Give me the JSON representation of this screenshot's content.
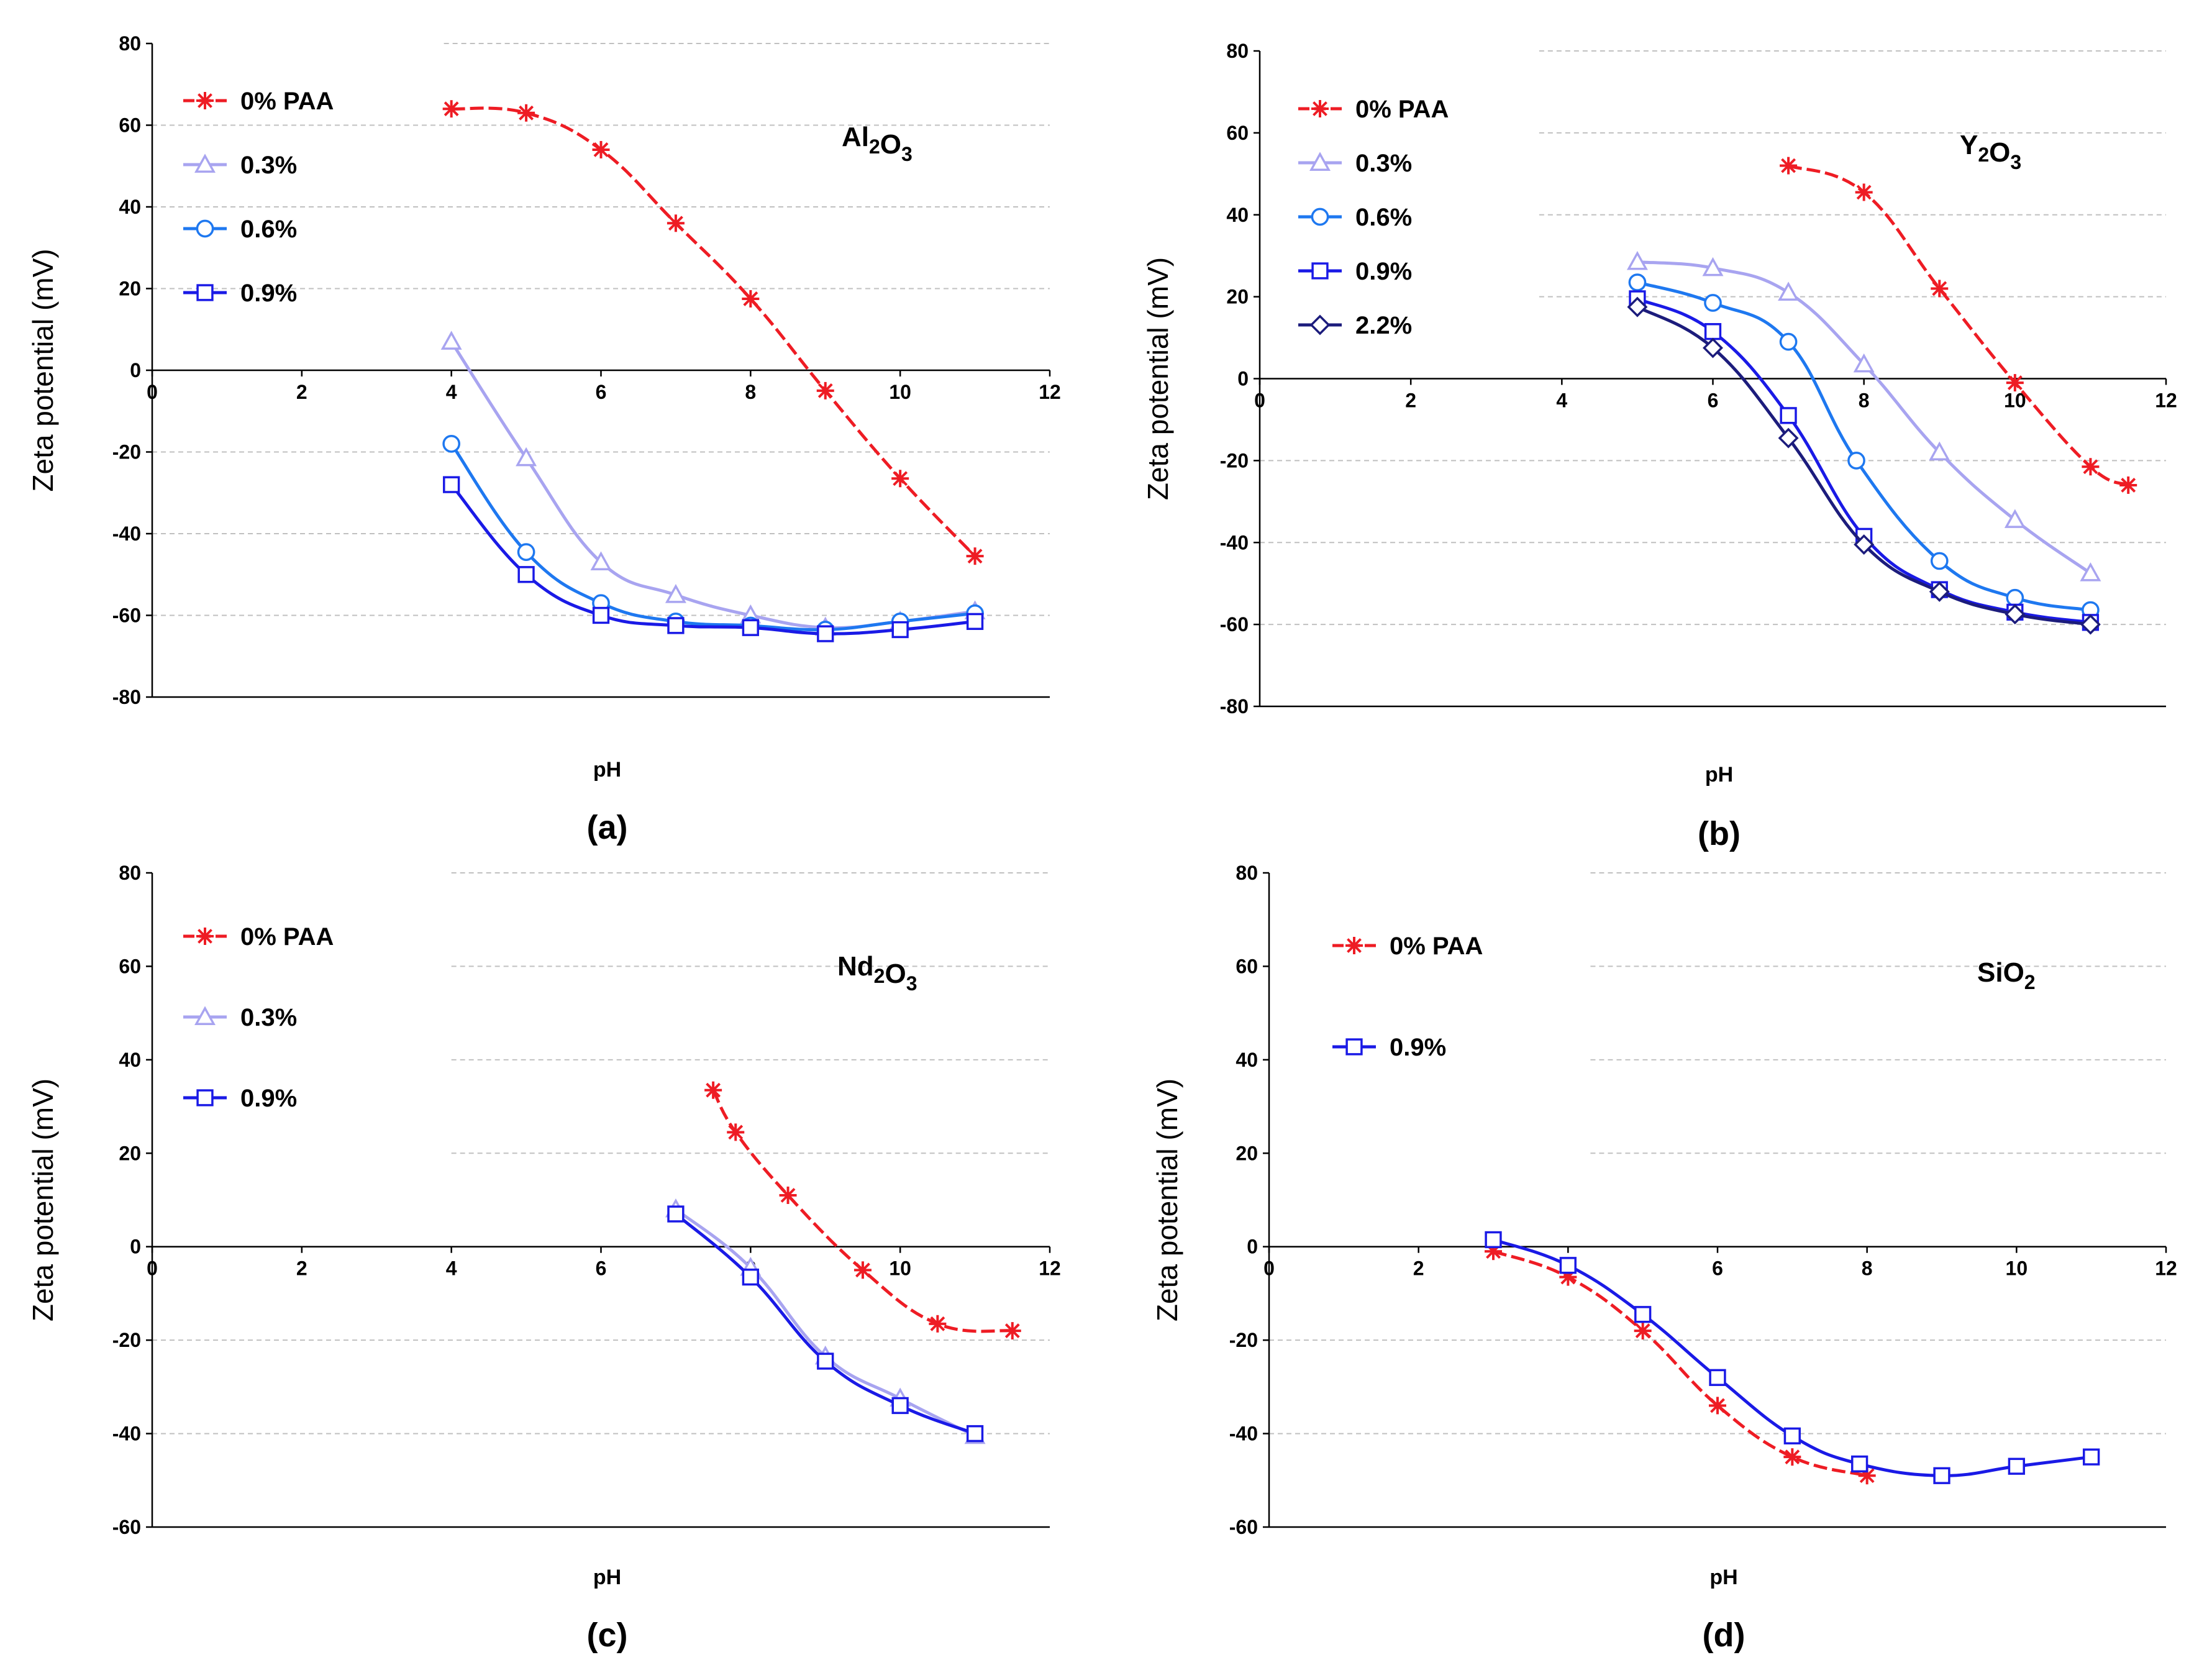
{
  "figure": {
    "colors": {
      "0% PAA": "#ee1c24",
      "0.3%": "#a8a4f0",
      "0.6%": "#1e78f0",
      "0.9%": "#1a1ae6",
      "2.2%": "#1c1c7c"
    }
  },
  "chart_data": [
    {
      "type": "line",
      "panel": "(a)",
      "compound": {
        "base": "Al",
        "parts": [
          [
            "Al",
            "2"
          ],
          [
            "O",
            "3"
          ]
        ]
      },
      "xlabel": "pH",
      "ylabel": "Zeta potential (mV)",
      "xlim": [
        0,
        12
      ],
      "ylim": [
        -80,
        80
      ],
      "xticks": [
        0,
        2,
        4,
        6,
        8,
        10,
        12
      ],
      "yticks": [
        -80,
        -60,
        -40,
        -20,
        0,
        20,
        40,
        60,
        80
      ],
      "series": [
        {
          "name": "0% PAA",
          "marker": "star",
          "dashed": true,
          "points": [
            [
              4,
              64
            ],
            [
              5,
              63
            ],
            [
              6,
              54
            ],
            [
              7,
              36
            ],
            [
              8,
              17.5
            ],
            [
              9,
              -5
            ],
            [
              10,
              -26.5
            ],
            [
              11,
              -45.5
            ]
          ]
        },
        {
          "name": "0.3%",
          "marker": "triangle",
          "dashed": false,
          "points": [
            [
              4,
              7
            ],
            [
              5,
              -21.5
            ],
            [
              6,
              -47
            ],
            [
              7,
              -55
            ],
            [
              8,
              -60
            ],
            [
              9,
              -63
            ],
            [
              10,
              -61.5
            ],
            [
              11,
              -59
            ]
          ]
        },
        {
          "name": "0.6%",
          "marker": "circle",
          "dashed": false,
          "points": [
            [
              4,
              -18
            ],
            [
              5,
              -44.5
            ],
            [
              6,
              -57
            ],
            [
              7,
              -61.5
            ],
            [
              8,
              -62.5
            ],
            [
              9,
              -63.5
            ],
            [
              10,
              -61.5
            ],
            [
              11,
              -59.5
            ]
          ]
        },
        {
          "name": "0.9%",
          "marker": "square",
          "dashed": false,
          "points": [
            [
              4,
              -28
            ],
            [
              5,
              -50
            ],
            [
              6,
              -60
            ],
            [
              7,
              -62.5
            ],
            [
              8,
              -63
            ],
            [
              9,
              -64.5
            ],
            [
              10,
              -63.5
            ],
            [
              11,
              -61.5
            ]
          ]
        }
      ]
    },
    {
      "type": "line",
      "panel": "(b)",
      "compound": {
        "parts": [
          [
            "Y",
            "2"
          ],
          [
            "O",
            "3"
          ]
        ]
      },
      "xlabel": "pH",
      "ylabel": "Zeta potential (mV)",
      "xlim": [
        0,
        12
      ],
      "ylim": [
        -80,
        80
      ],
      "xticks": [
        0,
        2,
        4,
        6,
        8,
        10,
        12
      ],
      "yticks": [
        -80,
        -60,
        -40,
        -20,
        0,
        20,
        40,
        60,
        80
      ],
      "series": [
        {
          "name": "0% PAA",
          "marker": "star",
          "dashed": true,
          "points": [
            [
              7,
              52
            ],
            [
              8,
              45.5
            ],
            [
              9,
              22
            ],
            [
              10,
              -1
            ],
            [
              11,
              -21.5
            ],
            [
              11.5,
              -26
            ]
          ]
        },
        {
          "name": "0.3%",
          "marker": "triangle",
          "dashed": false,
          "points": [
            [
              5,
              28.5
            ],
            [
              6,
              27
            ],
            [
              7,
              21
            ],
            [
              8,
              3.5
            ],
            [
              9,
              -18
            ],
            [
              10,
              -34.5
            ],
            [
              11,
              -47.5
            ]
          ]
        },
        {
          "name": "0.6%",
          "marker": "circle",
          "dashed": false,
          "points": [
            [
              5,
              23.5
            ],
            [
              6,
              18.5
            ],
            [
              7,
              9
            ],
            [
              7.9,
              -20
            ],
            [
              9,
              -44.5
            ],
            [
              10,
              -53.5
            ],
            [
              11,
              -56.5
            ]
          ]
        },
        {
          "name": "0.9%",
          "marker": "square",
          "dashed": false,
          "points": [
            [
              5,
              19.5
            ],
            [
              6,
              11.5
            ],
            [
              7,
              -9
            ],
            [
              8,
              -38.5
            ],
            [
              9,
              -51.5
            ],
            [
              10,
              -57
            ],
            [
              11,
              -59.5
            ]
          ]
        },
        {
          "name": "2.2%",
          "marker": "diamond",
          "dashed": false,
          "points": [
            [
              5,
              17.5
            ],
            [
              6,
              7.5
            ],
            [
              7,
              -14.5
            ],
            [
              8,
              -40.5
            ],
            [
              9,
              -52
            ],
            [
              10,
              -57.5
            ],
            [
              11,
              -60
            ]
          ]
        }
      ]
    },
    {
      "type": "line",
      "panel": "(c)",
      "compound": {
        "parts": [
          [
            "Nd",
            "2"
          ],
          [
            "O",
            "3"
          ]
        ]
      },
      "xlabel": "pH",
      "ylabel": "Zeta potential (mV)",
      "xlim": [
        0,
        12
      ],
      "ylim": [
        -60,
        80
      ],
      "xticks": [
        0,
        2,
        4,
        6,
        8,
        10,
        12
      ],
      "yticks": [
        -60,
        -40,
        -20,
        0,
        20,
        40,
        60,
        80
      ],
      "series": [
        {
          "name": "0% PAA",
          "marker": "star",
          "dashed": true,
          "points": [
            [
              7.5,
              33.5
            ],
            [
              7.8,
              24.5
            ],
            [
              8.5,
              11
            ],
            [
              9.5,
              -5
            ],
            [
              10.5,
              -16.5
            ],
            [
              11.5,
              -18
            ]
          ]
        },
        {
          "name": "0.3%",
          "marker": "triangle",
          "dashed": false,
          "points": [
            [
              7,
              8
            ],
            [
              8,
              -4.5
            ],
            [
              9,
              -23.5
            ],
            [
              10,
              -32.5
            ],
            [
              11,
              -40.5
            ]
          ]
        },
        {
          "name": "0.9%",
          "marker": "square",
          "dashed": false,
          "points": [
            [
              7,
              7
            ],
            [
              8,
              -6.5
            ],
            [
              9,
              -24.5
            ],
            [
              10,
              -34
            ],
            [
              11,
              -40
            ]
          ]
        }
      ]
    },
    {
      "type": "line",
      "panel": "(d)",
      "compound": {
        "parts": [
          [
            "SiO",
            "2"
          ]
        ]
      },
      "xlabel": "pH",
      "ylabel": "Zeta potential (mV)",
      "xlim": [
        0,
        12
      ],
      "ylim": [
        -60,
        80
      ],
      "xticks": [
        0,
        2,
        4,
        6,
        8,
        10,
        12
      ],
      "yticks": [
        -60,
        -40,
        -20,
        0,
        20,
        40,
        60,
        80
      ],
      "series": [
        {
          "name": "0% PAA",
          "marker": "star",
          "dashed": true,
          "points": [
            [
              3,
              -1
            ],
            [
              4,
              -6.5
            ],
            [
              5,
              -18
            ],
            [
              6,
              -34
            ],
            [
              7,
              -45
            ],
            [
              8,
              -49
            ]
          ]
        },
        {
          "name": "0.9%",
          "marker": "square",
          "dashed": false,
          "points": [
            [
              3,
              1.5
            ],
            [
              4,
              -4
            ],
            [
              5,
              -14.5
            ],
            [
              6,
              -28
            ],
            [
              7,
              -40.5
            ],
            [
              7.9,
              -46.5
            ],
            [
              9,
              -49
            ],
            [
              10,
              -47
            ],
            [
              11,
              -45
            ]
          ]
        }
      ]
    }
  ]
}
